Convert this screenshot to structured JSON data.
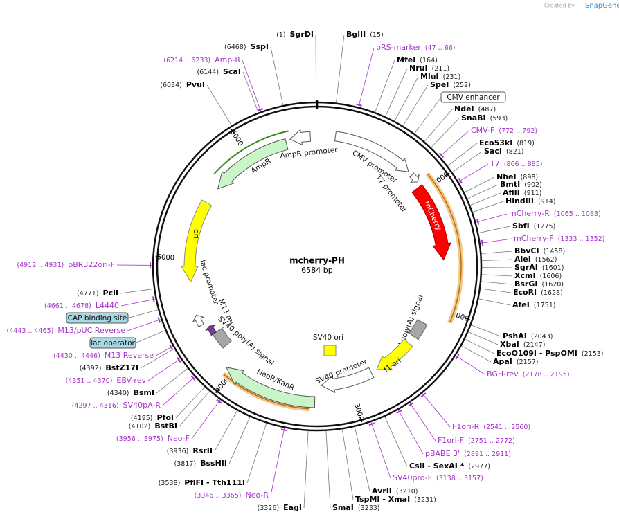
{
  "header": {
    "credit": "Created by",
    "brand": "SnapGene"
  },
  "plasmid": {
    "name": "mcherry-PH",
    "length": "6584 bp"
  },
  "ruler_ticks": [
    1000,
    2000,
    3000,
    4000,
    5000,
    6000
  ],
  "enzymes": [
    {
      "name": "SgrDI",
      "position": "(1)"
    },
    {
      "name": "BglII",
      "position": "(15)"
    },
    {
      "name": "SspI",
      "position": "(6468)"
    },
    {
      "name": "MfeI",
      "position": "(164)"
    },
    {
      "name": "NruI",
      "position": "(211)"
    },
    {
      "name": "MluI",
      "position": "(231)"
    },
    {
      "name": "SpeI",
      "position": "(252)"
    },
    {
      "name": "ScaI",
      "position": "(6144)"
    },
    {
      "name": "PvuI",
      "position": "(6034)"
    },
    {
      "name": "NdeI",
      "position": "(487)"
    },
    {
      "name": "SnaBI",
      "position": "(593)"
    },
    {
      "name": "Eco53kI",
      "position": "(819)"
    },
    {
      "name": "SacI",
      "position": "(821)"
    },
    {
      "name": "NheI",
      "position": "(898)"
    },
    {
      "name": "BmtI",
      "position": "(902)"
    },
    {
      "name": "AflII",
      "position": "(911)"
    },
    {
      "name": "HindIII",
      "position": "(914)"
    },
    {
      "name": "SbfI",
      "position": "(1275)"
    },
    {
      "name": "BbvCI",
      "position": "(1458)"
    },
    {
      "name": "AleI",
      "position": "(1562)"
    },
    {
      "name": "SgrAI",
      "position": "(1601)"
    },
    {
      "name": "XcmI",
      "position": "(1606)"
    },
    {
      "name": "BsrGI",
      "position": "(1620)"
    },
    {
      "name": "EcoRI",
      "position": "(1628)"
    },
    {
      "name": "AfeI",
      "position": "(1751)"
    },
    {
      "name": "PshAI",
      "position": "(2043)"
    },
    {
      "name": "XbaI",
      "position": "(2147)"
    },
    {
      "name": "EcoO109I - PspOMI",
      "position": "(2153)"
    },
    {
      "name": "ApaI",
      "position": "(2157)"
    },
    {
      "name": "CsiI - SexAI *",
      "position": "(2977)"
    },
    {
      "name": "AvrII",
      "position": "(3210)"
    },
    {
      "name": "TspMI - XmaI",
      "position": "(3231)"
    },
    {
      "name": "SmaI",
      "position": "(3233)"
    },
    {
      "name": "EagI",
      "position": "(3326)"
    },
    {
      "name": "PflFI - Tth111I",
      "position": "(3538)"
    },
    {
      "name": "BssHII",
      "position": "(3817)"
    },
    {
      "name": "RsrII",
      "position": "(3936)"
    },
    {
      "name": "BstBI",
      "position": "(4102)"
    },
    {
      "name": "PfoI",
      "position": "(4195)"
    },
    {
      "name": "BsmI",
      "position": "(4340)"
    },
    {
      "name": "BstZ17I",
      "position": "(4392)"
    },
    {
      "name": "PciI",
      "position": "(4771)"
    }
  ],
  "primers": [
    {
      "name": "Amp-R",
      "range": "(6214 .. 6233)"
    },
    {
      "name": "pRS-marker",
      "range": "(47 .. 66)"
    },
    {
      "name": "CMV-F",
      "range": "(772 .. 792)"
    },
    {
      "name": "T7",
      "range": "(866 .. 885)"
    },
    {
      "name": "mCherry-R",
      "range": "(1065 .. 1083)"
    },
    {
      "name": "mCherry-F",
      "range": "(1333 .. 1352)"
    },
    {
      "name": "BGH-rev",
      "range": "(2178 .. 2195)"
    },
    {
      "name": "F1ori-R",
      "range": "(2541 .. 2560)"
    },
    {
      "name": "F1ori-F",
      "range": "(2751 .. 2772)"
    },
    {
      "name": "pBABE 3'",
      "range": "(2891 .. 2911)"
    },
    {
      "name": "SV40pro-F",
      "range": "(3138 .. 3157)"
    },
    {
      "name": "Neo-R",
      "range": "(3346 .. 3365)"
    },
    {
      "name": "Neo-F",
      "range": "(3956 .. 3975)"
    },
    {
      "name": "SV40pA-R",
      "range": "(4297 .. 4316)"
    },
    {
      "name": "EBV-rev",
      "range": "(4351 .. 4370)"
    },
    {
      "name": "M13 Reverse",
      "range": "(4430 .. 4446)"
    },
    {
      "name": "M13/pUC Reverse",
      "range": "(4443 .. 4465)"
    },
    {
      "name": "L4440",
      "range": "(4661 .. 4678)"
    },
    {
      "name": "pBR322ori-F",
      "range": "(4912 .. 4931)"
    }
  ],
  "boxed_features": [
    "CMV enhancer",
    "CAP binding site",
    "lac operator"
  ],
  "features": [
    "AmpR promoter",
    "AmpR",
    "ori",
    "CMV promoter",
    "T7 promoter",
    "mCherry",
    "bGH poly(A) signal",
    "f1 ori",
    "SV40 promoter",
    "NeoR/KanR",
    "SV40 poly(A) signal",
    "lac promoter",
    "M13 rev",
    "SV40 ori"
  ]
}
